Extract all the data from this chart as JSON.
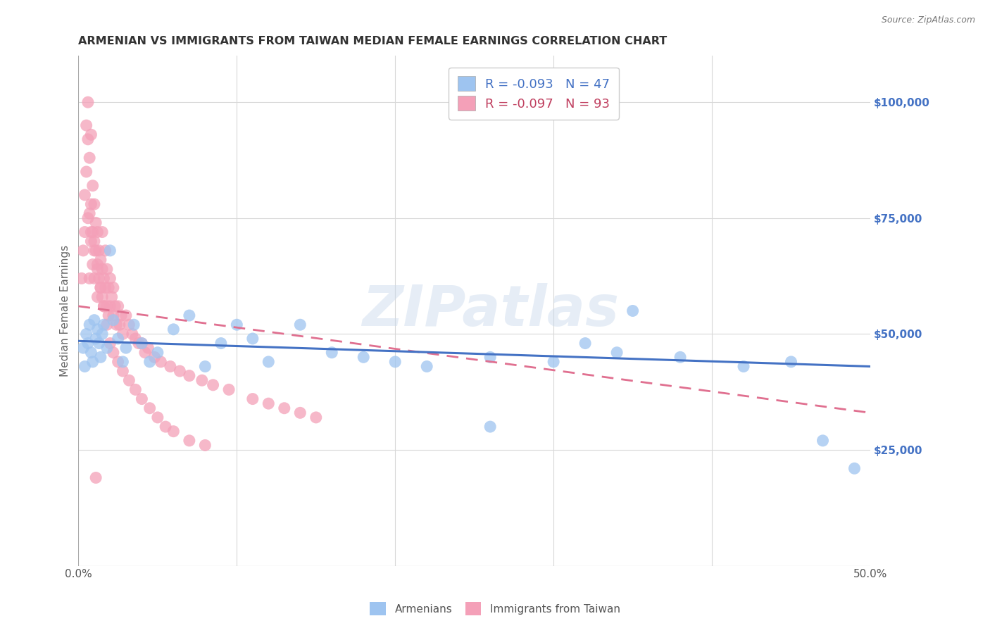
{
  "title": "ARMENIAN VS IMMIGRANTS FROM TAIWAN MEDIAN FEMALE EARNINGS CORRELATION CHART",
  "source": "Source: ZipAtlas.com",
  "ylabel": "Median Female Earnings",
  "xlim": [
    0.0,
    0.5
  ],
  "ylim": [
    0,
    110000
  ],
  "yticks": [
    0,
    25000,
    50000,
    75000,
    100000
  ],
  "ytick_labels": [
    "",
    "$25,000",
    "$50,000",
    "$75,000",
    "$100,000"
  ],
  "xticks": [
    0.0,
    0.1,
    0.2,
    0.3,
    0.4,
    0.5
  ],
  "xtick_labels": [
    "0.0%",
    "",
    "",
    "",
    "",
    "50.0%"
  ],
  "legend_entries": [
    {
      "label": "R = -0.093   N = 47",
      "color": "#aec6f0"
    },
    {
      "label": "R = -0.097   N = 93",
      "color": "#f4b0c0"
    }
  ],
  "legend_bottom": [
    {
      "label": "Armenians",
      "color": "#aec6f0"
    },
    {
      "label": "Immigrants from Taiwan",
      "color": "#f4b0c0"
    }
  ],
  "watermark": "ZIPatlas",
  "background_color": "#ffffff",
  "grid_color": "#d8d8d8",
  "title_color": "#333333",
  "ytick_color": "#4472c4",
  "blue_line_color": "#4472c4",
  "pink_line_color": "#e07090",
  "blue_scatter_color": "#9ec4f0",
  "pink_scatter_color": "#f4a0b8",
  "armenian_x": [
    0.003,
    0.004,
    0.005,
    0.006,
    0.007,
    0.008,
    0.009,
    0.01,
    0.011,
    0.012,
    0.013,
    0.014,
    0.015,
    0.016,
    0.018,
    0.02,
    0.022,
    0.025,
    0.028,
    0.03,
    0.035,
    0.04,
    0.045,
    0.05,
    0.06,
    0.07,
    0.08,
    0.09,
    0.1,
    0.11,
    0.12,
    0.14,
    0.16,
    0.18,
    0.2,
    0.22,
    0.26,
    0.3,
    0.32,
    0.34,
    0.38,
    0.42,
    0.45,
    0.47,
    0.49,
    0.26,
    0.35
  ],
  "armenian_y": [
    47000,
    43000,
    50000,
    48000,
    52000,
    46000,
    44000,
    53000,
    49000,
    51000,
    48000,
    45000,
    50000,
    52000,
    47000,
    68000,
    53000,
    49000,
    44000,
    47000,
    52000,
    48000,
    44000,
    46000,
    51000,
    54000,
    43000,
    48000,
    52000,
    49000,
    44000,
    52000,
    46000,
    45000,
    44000,
    43000,
    45000,
    44000,
    48000,
    46000,
    45000,
    43000,
    44000,
    27000,
    21000,
    30000,
    55000
  ],
  "taiwan_x": [
    0.002,
    0.003,
    0.004,
    0.005,
    0.005,
    0.006,
    0.006,
    0.007,
    0.007,
    0.008,
    0.008,
    0.008,
    0.009,
    0.009,
    0.009,
    0.01,
    0.01,
    0.01,
    0.011,
    0.011,
    0.012,
    0.012,
    0.012,
    0.013,
    0.013,
    0.014,
    0.014,
    0.015,
    0.015,
    0.015,
    0.016,
    0.016,
    0.017,
    0.017,
    0.018,
    0.018,
    0.019,
    0.019,
    0.02,
    0.02,
    0.021,
    0.022,
    0.022,
    0.023,
    0.024,
    0.025,
    0.026,
    0.027,
    0.028,
    0.03,
    0.032,
    0.034,
    0.036,
    0.038,
    0.04,
    0.042,
    0.044,
    0.048,
    0.052,
    0.058,
    0.064,
    0.07,
    0.078,
    0.085,
    0.095,
    0.11,
    0.12,
    0.13,
    0.14,
    0.15,
    0.006,
    0.008,
    0.01,
    0.012,
    0.014,
    0.016,
    0.018,
    0.02,
    0.022,
    0.025,
    0.028,
    0.032,
    0.036,
    0.04,
    0.045,
    0.05,
    0.055,
    0.06,
    0.07,
    0.08,
    0.004,
    0.007,
    0.011
  ],
  "taiwan_y": [
    62000,
    68000,
    72000,
    95000,
    85000,
    100000,
    92000,
    88000,
    76000,
    93000,
    78000,
    70000,
    82000,
    72000,
    65000,
    78000,
    70000,
    62000,
    74000,
    68000,
    72000,
    65000,
    58000,
    68000,
    62000,
    66000,
    60000,
    64000,
    58000,
    72000,
    62000,
    56000,
    68000,
    60000,
    64000,
    56000,
    60000,
    54000,
    62000,
    56000,
    58000,
    60000,
    54000,
    56000,
    52000,
    56000,
    52000,
    54000,
    50000,
    54000,
    52000,
    50000,
    49000,
    48000,
    48000,
    46000,
    47000,
    45000,
    44000,
    43000,
    42000,
    41000,
    40000,
    39000,
    38000,
    36000,
    35000,
    34000,
    33000,
    32000,
    75000,
    72000,
    68000,
    64000,
    60000,
    56000,
    52000,
    48000,
    46000,
    44000,
    42000,
    40000,
    38000,
    36000,
    34000,
    32000,
    30000,
    29000,
    27000,
    26000,
    80000,
    62000,
    19000
  ],
  "arm_trendline_x": [
    0.0,
    0.5
  ],
  "arm_trendline_y": [
    48500,
    43000
  ],
  "tai_trendline_x": [
    0.0,
    0.5
  ],
  "tai_trendline_y": [
    56000,
    33000
  ]
}
